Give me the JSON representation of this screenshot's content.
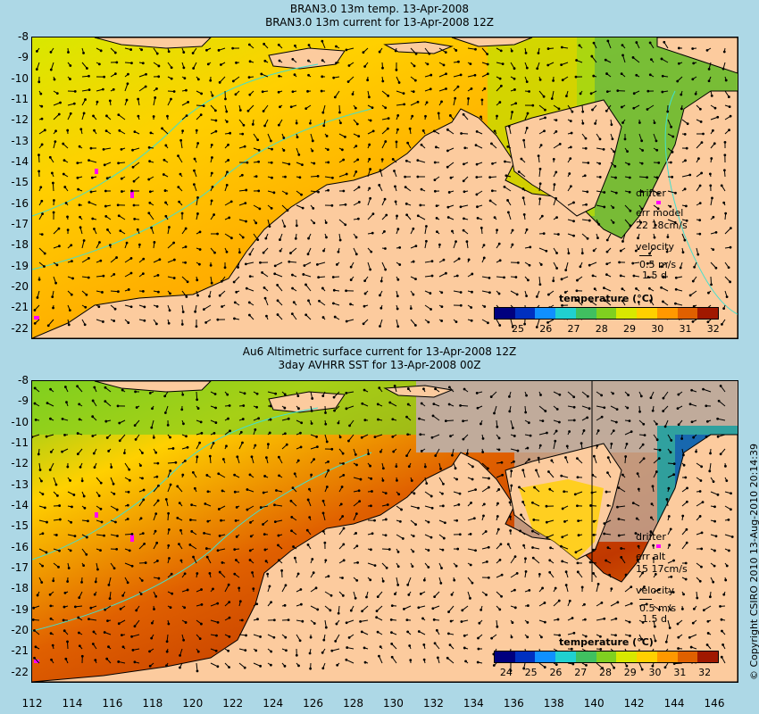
{
  "panel_top": {
    "title_line1": "BRAN3.0 13m temp. 13-Apr-2008",
    "title_line2": "BRAN3.0 13m current for 13-Apr-2008 12Z",
    "drifter_label": "drifter",
    "err_label": "err model",
    "err_value": "22 18cm/s",
    "velocity_label": "velocity",
    "velocity_scale": "0.5 m/s",
    "velocity_time": "1.5 d",
    "colorbar_title": "temperature (°C)",
    "colorbar_ticks": [
      "25",
      "26",
      "27",
      "28",
      "29",
      "30",
      "31",
      "32"
    ]
  },
  "panel_bottom": {
    "title_line1": "Au6 Altimetric surface current for 13-Apr-2008 12Z",
    "title_line2": "3day AVHRR SST for 13-Apr-2008 00Z",
    "drifter_label": "drifter",
    "err_label": "err alt",
    "err_value": "15 17cm/s",
    "velocity_label": "velocity",
    "velocity_scale": "0.5 m/s",
    "velocity_time": "1.5 d",
    "colorbar_title": "temperature (°C)",
    "colorbar_ticks": [
      "24",
      "25",
      "26",
      "27",
      "28",
      "29",
      "30",
      "31",
      "32"
    ]
  },
  "y_ticks": [
    "-8",
    "-9",
    "-10",
    "-11",
    "-12",
    "-13",
    "-14",
    "-15",
    "-16",
    "-17",
    "-18",
    "-19",
    "-20",
    "-21",
    "-22"
  ],
  "x_ticks": [
    "112",
    "114",
    "116",
    "118",
    "120",
    "122",
    "124",
    "126",
    "128",
    "130",
    "132",
    "134",
    "136",
    "138",
    "140",
    "142",
    "144",
    "146"
  ],
  "copyright": "© Copyright CSIRO 2010   13-Aug-2010 20:14:39",
  "colors": {
    "background": "#add8e6",
    "land": "#fccb9e",
    "cloud": "#c0ab9b",
    "drifter": "#ff00ff",
    "contour": "#40e0d0",
    "colorbar": [
      "#00007f",
      "#0030c0",
      "#1090ff",
      "#20d0d0",
      "#40c060",
      "#80d020",
      "#d8e800",
      "#ffd000",
      "#ff9800",
      "#e06000",
      "#a01800"
    ]
  }
}
